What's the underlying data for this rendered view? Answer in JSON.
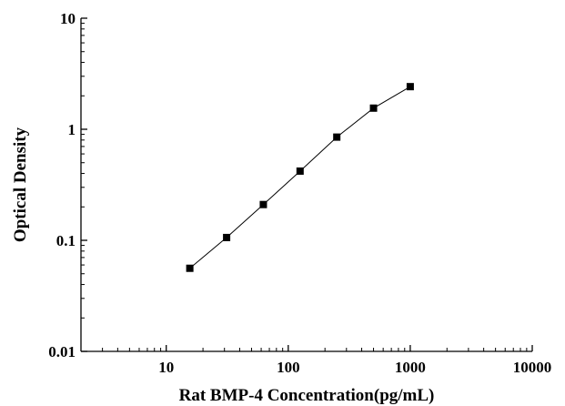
{
  "chart_data": {
    "type": "line",
    "xlabel": "Rat BMP-4 Concentration(pg/mL)",
    "ylabel": "Optical Density",
    "x_scale": "log",
    "y_scale": "log",
    "xlim": [
      2,
      10000
    ],
    "ylim": [
      0.01,
      10
    ],
    "x_ticks": [
      10,
      100,
      1000,
      10000
    ],
    "x_tick_labels": [
      "10",
      "100",
      "1000",
      "10000"
    ],
    "y_ticks": [
      0.01,
      0.1,
      1,
      10
    ],
    "y_tick_labels": [
      "0.01",
      "0.1",
      "1",
      "10"
    ],
    "grid": false,
    "marker": "square",
    "series": [
      {
        "x": [
          15.6,
          31.25,
          62.5,
          125,
          250,
          500,
          1000
        ],
        "y": [
          0.056,
          0.106,
          0.21,
          0.42,
          0.85,
          1.55,
          2.42
        ]
      }
    ],
    "colors": {
      "line": "#000000",
      "marker": "#000000",
      "axis": "#000000"
    }
  }
}
